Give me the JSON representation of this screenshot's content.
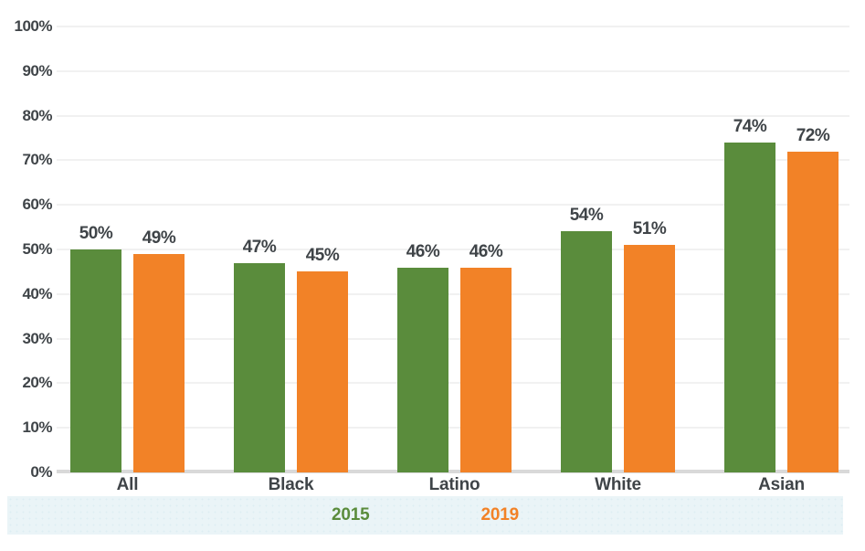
{
  "chart_data": {
    "type": "bar",
    "title": "",
    "xlabel": "",
    "ylabel": "",
    "categories": [
      "All",
      "Black",
      "Latino",
      "White",
      "Asian"
    ],
    "series": [
      {
        "name": "2015",
        "color": "#5a8c3c",
        "values": [
          50,
          47,
          46,
          54,
          74
        ]
      },
      {
        "name": "2019",
        "color": "#f28227",
        "values": [
          49,
          45,
          46,
          51,
          72
        ]
      }
    ],
    "value_suffix": "%",
    "data_labels": [
      "50%",
      "49%",
      "47%",
      "45%",
      "46%",
      "46%",
      "54%",
      "51%",
      "74%",
      "72%"
    ],
    "ylim": [
      0,
      100
    ],
    "ytick_step": 10,
    "ytick_labels": [
      "0%",
      "10%",
      "20%",
      "30%",
      "40%",
      "50%",
      "60%",
      "70%",
      "80%",
      "90%",
      "100%"
    ],
    "grid": true,
    "legend_position": "bottom",
    "legend_entries": [
      "2015",
      "2019"
    ]
  },
  "colors": {
    "series_2015": "#5a8c3c",
    "series_2019": "#f28227",
    "text": "#3f4448",
    "gridline": "#f1f1f1",
    "axis_line": "#d9d9d9",
    "legend_strip_background": "#eaf4f7",
    "page_background": "#ffffff"
  }
}
